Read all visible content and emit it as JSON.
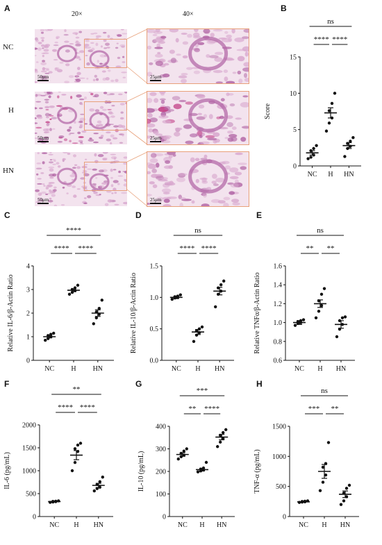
{
  "figure": {
    "panel_letters": [
      "A",
      "B",
      "C",
      "D",
      "E",
      "F",
      "G",
      "H"
    ],
    "histology": {
      "col_headers": [
        "20×",
        "40×"
      ],
      "row_labels": [
        "NC",
        "H",
        "HN"
      ],
      "scale_labels": {
        "low": "50μm",
        "high": "25μm"
      },
      "colors": {
        "tissue_light": "#f3e3ee",
        "tissue_mid": "#d9a9cf",
        "tissue_dark": "#b46aa8",
        "inflam": "#c23f86",
        "zoom": "#e8a07a"
      }
    }
  },
  "chart_data": [
    {
      "id": "B",
      "type": "scatter",
      "ylabel": "Score",
      "ylim": [
        0,
        15
      ],
      "yticks": [
        0,
        5,
        10,
        15
      ],
      "categories": [
        "NC",
        "H",
        "HN"
      ],
      "points": [
        [
          1.0,
          1.2,
          1.5,
          2.1,
          2.4,
          2.8
        ],
        [
          4.8,
          5.9,
          6.6,
          7.6,
          8.6,
          10.0
        ],
        [
          1.3,
          2.4,
          2.7,
          3.1,
          3.4,
          3.9
        ]
      ],
      "means": [
        1.8,
        7.3,
        2.8
      ],
      "sem": [
        0.3,
        0.7,
        0.4
      ],
      "brackets": [
        {
          "from": 0,
          "to": 1,
          "label": "****"
        },
        {
          "from": 1,
          "to": 2,
          "label": "****"
        },
        {
          "from": 0,
          "to": 2,
          "label": "ns"
        }
      ]
    },
    {
      "id": "C",
      "type": "scatter",
      "ylabel": "Relative IL-6/β-Actin Ratio",
      "ylim": [
        0,
        4
      ],
      "yticks": [
        0,
        1,
        2,
        3,
        4
      ],
      "categories": [
        "NC",
        "H",
        "HN"
      ],
      "points": [
        [
          0.85,
          0.92,
          1.0,
          1.05,
          1.1,
          1.15
        ],
        [
          2.8,
          2.88,
          2.95,
          3.0,
          3.07,
          3.18
        ],
        [
          1.55,
          1.8,
          1.95,
          2.05,
          2.2,
          2.55
        ]
      ],
      "means": [
        1.0,
        2.97,
        2.0
      ],
      "sem": [
        0.05,
        0.06,
        0.14
      ],
      "brackets": [
        {
          "from": 0,
          "to": 1,
          "label": "****"
        },
        {
          "from": 1,
          "to": 2,
          "label": "****"
        },
        {
          "from": 0,
          "to": 2,
          "label": "****"
        }
      ]
    },
    {
      "id": "D",
      "type": "scatter",
      "ylabel": "Relative IL-10/β-Actin Ratio",
      "ylim": [
        0.0,
        1.5
      ],
      "yticks": [
        0.0,
        0.5,
        1.0,
        1.5
      ],
      "categories": [
        "NC",
        "H",
        "HN"
      ],
      "points": [
        [
          0.97,
          0.99,
          1.0,
          1.01,
          1.02,
          1.04
        ],
        [
          0.3,
          0.4,
          0.44,
          0.47,
          0.5,
          0.53
        ],
        [
          0.85,
          1.05,
          1.1,
          1.15,
          1.2,
          1.26
        ]
      ],
      "means": [
        1.0,
        0.45,
        1.1
      ],
      "sem": [
        0.02,
        0.04,
        0.06
      ],
      "brackets": [
        {
          "from": 0,
          "to": 1,
          "label": "****"
        },
        {
          "from": 1,
          "to": 2,
          "label": "****"
        },
        {
          "from": 0,
          "to": 2,
          "label": "ns"
        }
      ]
    },
    {
      "id": "E",
      "type": "scatter",
      "ylabel": "Relative TNFα/β-Actin Ratio",
      "ylim": [
        0.6,
        1.6
      ],
      "yticks": [
        0.6,
        0.8,
        1.0,
        1.2,
        1.4,
        1.6
      ],
      "categories": [
        "NC",
        "H",
        "HN"
      ],
      "points": [
        [
          0.97,
          0.99,
          1.0,
          1.01,
          1.02,
          1.03
        ],
        [
          1.05,
          1.12,
          1.18,
          1.23,
          1.3,
          1.36
        ],
        [
          0.85,
          0.93,
          0.98,
          1.02,
          1.05,
          1.06
        ]
      ],
      "means": [
        1.0,
        1.2,
        0.98
      ],
      "sem": [
        0.02,
        0.04,
        0.04
      ],
      "brackets": [
        {
          "from": 0,
          "to": 1,
          "label": "**"
        },
        {
          "from": 1,
          "to": 2,
          "label": "**"
        },
        {
          "from": 0,
          "to": 2,
          "label": "ns"
        }
      ]
    },
    {
      "id": "F",
      "type": "scatter",
      "ylabel": "IL-6 (pg/mL)",
      "ylim": [
        0,
        2000
      ],
      "yticks": [
        0,
        500,
        1000,
        1500,
        2000
      ],
      "categories": [
        "NC",
        "H",
        "HN"
      ],
      "points": [
        [
          310,
          318,
          325,
          330,
          335,
          342
        ],
        [
          1000,
          1180,
          1420,
          1480,
          1560,
          1600
        ],
        [
          560,
          610,
          640,
          700,
          760,
          860
        ]
      ],
      "means": [
        327,
        1340,
        680
      ],
      "sem": [
        5,
        100,
        45
      ],
      "brackets": [
        {
          "from": 0,
          "to": 1,
          "label": "****"
        },
        {
          "from": 1,
          "to": 2,
          "label": "****"
        },
        {
          "from": 0,
          "to": 2,
          "label": "**"
        }
      ]
    },
    {
      "id": "G",
      "type": "scatter",
      "ylabel": "IL-10 (pg/mL)",
      "ylim": [
        0,
        400
      ],
      "yticks": [
        0,
        100,
        200,
        300,
        400
      ],
      "categories": [
        "NC",
        "H",
        "HN"
      ],
      "points": [
        [
          255,
          265,
          272,
          280,
          290,
          300
        ],
        [
          198,
          202,
          206,
          210,
          215,
          240
        ],
        [
          310,
          330,
          345,
          360,
          372,
          385
        ]
      ],
      "means": [
        275,
        208,
        352
      ],
      "sem": [
        8,
        6,
        12
      ],
      "brackets": [
        {
          "from": 0,
          "to": 1,
          "label": "**"
        },
        {
          "from": 1,
          "to": 2,
          "label": "****"
        },
        {
          "from": 0,
          "to": 2,
          "label": "***"
        }
      ]
    },
    {
      "id": "H",
      "type": "scatter",
      "ylabel": "TNF-α (pg/mL)",
      "ylim": [
        0,
        1500
      ],
      "yticks": [
        0,
        500,
        1000,
        1500
      ],
      "categories": [
        "NC",
        "H",
        "HN"
      ],
      "points": [
        [
          235,
          240,
          245,
          250,
          255,
          260
        ],
        [
          430,
          570,
          690,
          820,
          880,
          1230
        ],
        [
          200,
          260,
          330,
          390,
          470,
          520
        ]
      ],
      "means": [
        245,
        750,
        370
      ],
      "sem": [
        5,
        115,
        55
      ],
      "brackets": [
        {
          "from": 0,
          "to": 1,
          "label": "***"
        },
        {
          "from": 1,
          "to": 2,
          "label": "**"
        },
        {
          "from": 0,
          "to": 2,
          "label": "ns"
        }
      ]
    }
  ]
}
